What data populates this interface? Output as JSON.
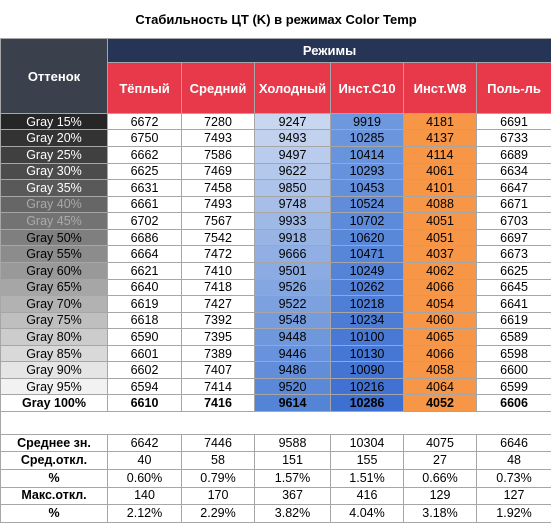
{
  "title": "Стабильность ЦТ (K) в режимах Color Temp",
  "table": {
    "corner": "Оттенок",
    "group": "Режимы",
    "columns": [
      "Тёплый",
      "Средний",
      "Холодный",
      "Инст.С10",
      "Инст.W8",
      "Поль-ль"
    ],
    "rows": [
      {
        "label": "Gray 15%",
        "cells": [
          6672,
          7280,
          9247,
          9919,
          4181,
          6691
        ]
      },
      {
        "label": "Gray 20%",
        "cells": [
          6750,
          7493,
          9493,
          10285,
          4137,
          6733
        ]
      },
      {
        "label": "Gray 25%",
        "cells": [
          6662,
          7586,
          9497,
          10414,
          4114,
          6689
        ]
      },
      {
        "label": "Gray 30%",
        "cells": [
          6625,
          7469,
          9622,
          10293,
          4061,
          6634
        ]
      },
      {
        "label": "Gray 35%",
        "cells": [
          6631,
          7458,
          9850,
          10453,
          4101,
          6647
        ]
      },
      {
        "label": "Gray 40%",
        "cells": [
          6661,
          7493,
          9748,
          10524,
          4088,
          6671
        ]
      },
      {
        "label": "Gray 45%",
        "cells": [
          6702,
          7567,
          9933,
          10702,
          4051,
          6703
        ]
      },
      {
        "label": "Gray 50%",
        "cells": [
          6686,
          7542,
          9918,
          10620,
          4051,
          6697
        ]
      },
      {
        "label": "Gray 55%",
        "cells": [
          6664,
          7472,
          9666,
          10471,
          4037,
          6673
        ]
      },
      {
        "label": "Gray 60%",
        "cells": [
          6621,
          7410,
          9501,
          10249,
          4062,
          6625
        ]
      },
      {
        "label": "Gray 65%",
        "cells": [
          6640,
          7418,
          9526,
          10262,
          4066,
          6645
        ]
      },
      {
        "label": "Gray 70%",
        "cells": [
          6619,
          7427,
          9522,
          10218,
          4054,
          6641
        ]
      },
      {
        "label": "Gray 75%",
        "cells": [
          6618,
          7392,
          9548,
          10234,
          4060,
          6619
        ]
      },
      {
        "label": "Gray 80%",
        "cells": [
          6590,
          7395,
          9448,
          10100,
          4065,
          6589
        ]
      },
      {
        "label": "Gray 85%",
        "cells": [
          6601,
          7389,
          9446,
          10130,
          4066,
          6598
        ]
      },
      {
        "label": "Gray 90%",
        "cells": [
          6602,
          7407,
          9486,
          10090,
          4058,
          6600
        ]
      },
      {
        "label": "Gray 95%",
        "cells": [
          6594,
          7414,
          9520,
          10216,
          4064,
          6599
        ]
      },
      {
        "label": "Gray 100%",
        "cells": [
          6610,
          7416,
          9614,
          10286,
          4052,
          6606
        ]
      }
    ],
    "summary": [
      {
        "label": "Среднее зн.",
        "cells": [
          6642,
          7446,
          9588,
          10304,
          4075,
          6646
        ]
      },
      {
        "label": "Сред.откл.",
        "cells": [
          40,
          58,
          151,
          155,
          27,
          48
        ]
      },
      {
        "label": "%",
        "cells": [
          "0.60%",
          "0.79%",
          "1.57%",
          "1.51%",
          "0.66%",
          "0.73%"
        ]
      },
      {
        "label": "Макс.откл.",
        "cells": [
          140,
          170,
          367,
          416,
          129,
          127
        ]
      },
      {
        "label": "%",
        "cells": [
          "2.12%",
          "2.29%",
          "3.82%",
          "4.04%",
          "3.18%",
          "1.92%"
        ]
      }
    ]
  }
}
